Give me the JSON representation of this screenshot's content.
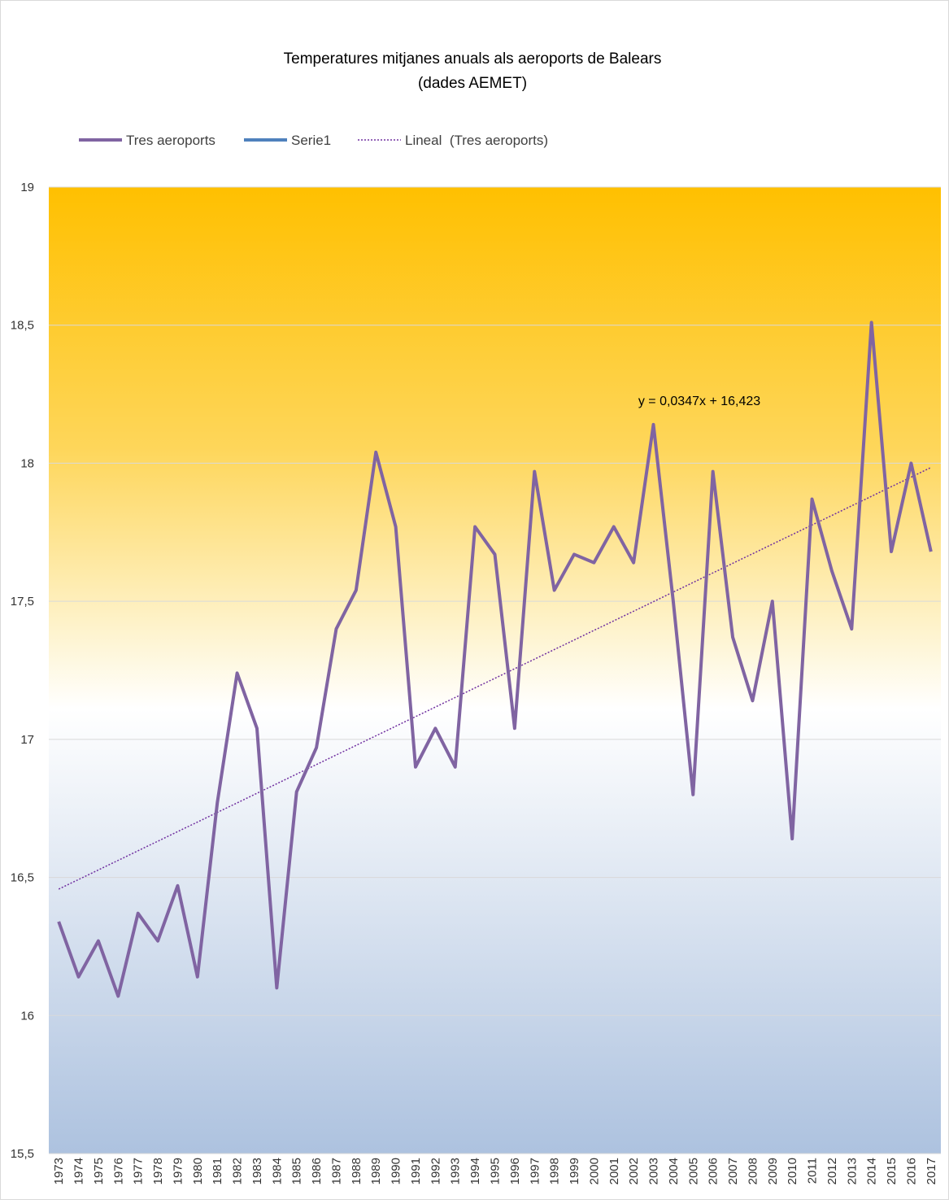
{
  "chart_data": {
    "type": "line",
    "title": [
      "Temperatures mitjanes anuals als aeroports de Balears",
      "(dades AEMET)"
    ],
    "categories": [
      "1973",
      "1974",
      "1975",
      "1976",
      "1977",
      "1978",
      "1979",
      "1980",
      "1981",
      "1982",
      "1983",
      "1984",
      "1985",
      "1986",
      "1987",
      "1988",
      "1989",
      "1990",
      "1991",
      "1992",
      "1993",
      "1994",
      "1995",
      "1996",
      "1997",
      "1998",
      "1999",
      "2000",
      "2001",
      "2002",
      "2003",
      "2004",
      "2005",
      "2006",
      "2007",
      "2008",
      "2009",
      "2010",
      "2011",
      "2012",
      "2013",
      "2014",
      "2015",
      "2016",
      "2017"
    ],
    "series": [
      {
        "name": "Tres aeroports",
        "color": "#8064a2",
        "values": [
          16.34,
          16.14,
          16.27,
          16.07,
          16.37,
          16.27,
          16.47,
          16.14,
          16.77,
          17.24,
          17.04,
          16.1,
          16.81,
          16.97,
          17.4,
          17.54,
          18.04,
          17.77,
          16.9,
          17.04,
          16.9,
          17.77,
          17.67,
          17.04,
          17.97,
          17.54,
          17.67,
          17.64,
          17.77,
          17.64,
          18.14,
          17.5,
          16.8,
          17.97,
          17.37,
          17.14,
          17.5,
          16.64,
          17.87,
          17.61,
          17.4,
          18.51,
          17.68,
          18.0,
          17.68
        ]
      },
      {
        "name": "Serie1",
        "color": "#4f81bd",
        "values": [
          null,
          null,
          null,
          null,
          null,
          null,
          null,
          null,
          null,
          null,
          null,
          null,
          null,
          null,
          null,
          null,
          null,
          null,
          null,
          null,
          null,
          null,
          null,
          null,
          null,
          null,
          null,
          null,
          null,
          null,
          null,
          null,
          null,
          null,
          null,
          null,
          null,
          null,
          null,
          null,
          null,
          null,
          null,
          null,
          null
        ]
      }
    ],
    "trendline": {
      "name": "Lineal  (Tres aeroports)",
      "color": "#7030a0",
      "slope": 0.0347,
      "intercept": 16.423,
      "equation": "y = 0,0347x + 16,423"
    },
    "ylim": [
      15.5,
      19
    ],
    "yticks": [
      {
        "value": 15.5,
        "label": "15,5"
      },
      16,
      {
        "value": 16.5,
        "label": "16,5"
      },
      17,
      {
        "value": 17.5,
        "label": "17,5"
      },
      18,
      {
        "value": 18.5,
        "label": "18,5"
      },
      19
    ],
    "grid": true
  }
}
